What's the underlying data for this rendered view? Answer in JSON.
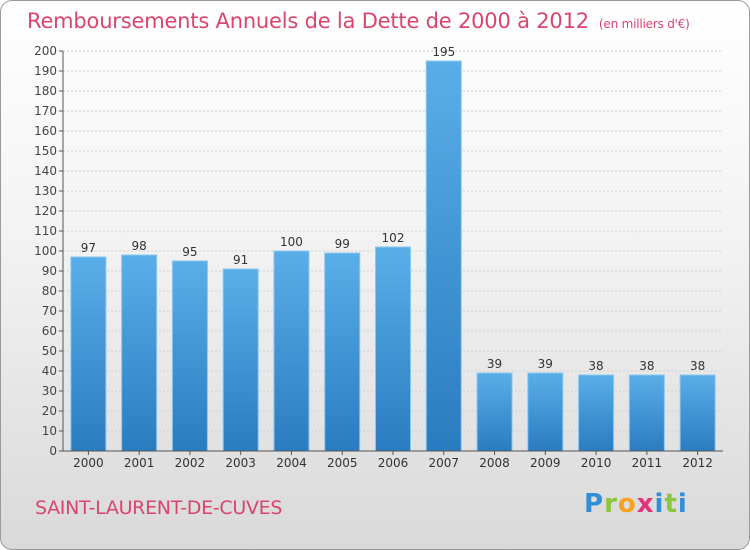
{
  "title": "Remboursements Annuels de la Dette de 2000 à 2012",
  "unit": "(en milliers d'€)",
  "commune": "SAINT-LAURENT-DE-CUVES",
  "brand": "Proxiti",
  "colors": {
    "title": "#d9456d",
    "bar_top": "#5aaee8",
    "bar_bottom": "#2a7cc0",
    "bar_edge": "#8cc6f0"
  },
  "chart_data": {
    "type": "bar",
    "title": "Remboursements Annuels de la Dette de 2000 à 2012",
    "ylabel": "(en milliers d'€)",
    "categories": [
      "2000",
      "2001",
      "2002",
      "2003",
      "2004",
      "2005",
      "2006",
      "2007",
      "2008",
      "2009",
      "2010",
      "2011",
      "2012"
    ],
    "values": [
      97,
      98,
      95,
      91,
      100,
      99,
      102,
      195,
      39,
      39,
      38,
      38,
      38
    ],
    "ylim": [
      0,
      200
    ],
    "yticks": [
      0,
      10,
      20,
      30,
      40,
      50,
      60,
      70,
      80,
      90,
      100,
      110,
      120,
      130,
      140,
      150,
      160,
      170,
      180,
      190,
      200
    ],
    "grid": true
  }
}
